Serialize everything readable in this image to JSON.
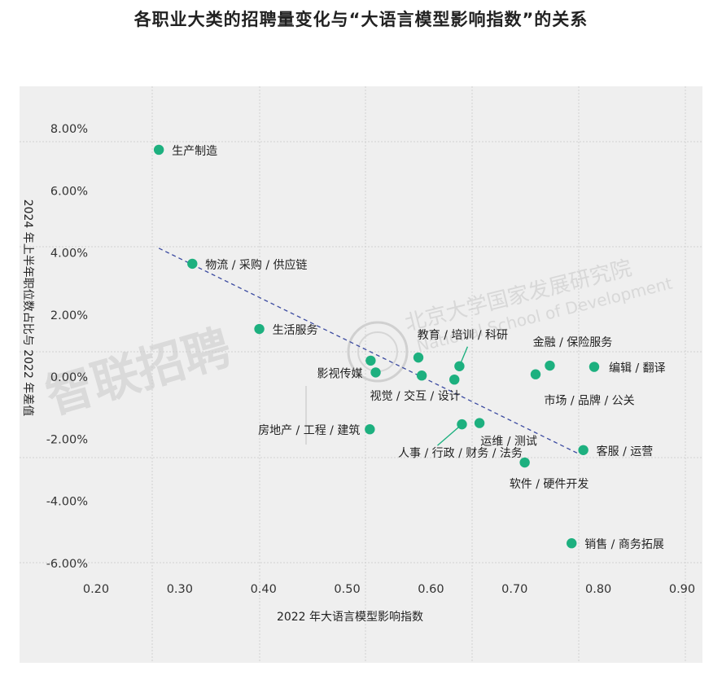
{
  "title": "各职业大类的招聘量变化与“大语言模型影响指数”的关系",
  "watermark": {
    "logo_text": "智联招聘",
    "institution_cn": "北京大学国家发展研究院",
    "institution_en": "National School of Development"
  },
  "chart_data": {
    "type": "scatter",
    "xlabel": "2022 年大语言模型影响指数",
    "ylabel": "2024 年上半年职位数占比与 2022 年差值",
    "xlim": [
      0.2,
      0.9
    ],
    "ylim": [
      -0.06,
      0.08
    ],
    "x_ticks": [
      "0.20",
      "0.30",
      "0.40",
      "0.50",
      "0.60",
      "0.70",
      "0.80",
      "0.90"
    ],
    "y_ticks": [
      "8.00%",
      "6.00%",
      "4.00%",
      "2.00%",
      "0.00%",
      "-2.00%",
      "-4.00%",
      "-6.00%"
    ],
    "point_color": "#1db07f",
    "trendline": {
      "from": [
        0.275,
        0.0415
      ],
      "to": [
        0.775,
        -0.0245
      ],
      "style": "dashed",
      "color": "#3b4aa0"
    },
    "points": [
      {
        "label": "生产制造",
        "x": 0.275,
        "y": 0.0732
      },
      {
        "label": "物流 / 采购 / 供应链",
        "x": 0.315,
        "y": 0.0365
      },
      {
        "label": "生活服务",
        "x": 0.395,
        "y": 0.0155
      },
      {
        "label": "影视传媒",
        "x": 0.534,
        "y": 0.0015
      },
      {
        "label": "",
        "x": 0.528,
        "y": 0.0053
      },
      {
        "label": "房地产 / 工程 / 建筑",
        "x": 0.527,
        "y": -0.0168
      },
      {
        "label": "",
        "x": 0.585,
        "y": 0.0063
      },
      {
        "label": "视觉 / 交互 / 设计",
        "x": 0.589,
        "y": 0.0005
      },
      {
        "label": "",
        "x": 0.628,
        "y": -0.0008
      },
      {
        "label": "教育 / 培训 / 科研",
        "x": 0.634,
        "y": 0.0035
      },
      {
        "label": "人事 / 行政 / 财务 / 法务",
        "x": 0.637,
        "y": -0.0152
      },
      {
        "label": "运维 / 测试",
        "x": 0.658,
        "y": -0.0148
      },
      {
        "label": "软件 / 硬件开发",
        "x": 0.712,
        "y": -0.0275
      },
      {
        "label": "市场 / 品牌 / 公关",
        "x": 0.725,
        "y": 0.0009
      },
      {
        "label": "金融 / 保险服务",
        "x": 0.742,
        "y": 0.0037
      },
      {
        "label": "编辑 / 翻译",
        "x": 0.795,
        "y": 0.0033
      },
      {
        "label": "客服 / 运营",
        "x": 0.782,
        "y": -0.0235
      },
      {
        "label": "销售 / 商务拓展",
        "x": 0.768,
        "y": -0.0535
      }
    ]
  }
}
